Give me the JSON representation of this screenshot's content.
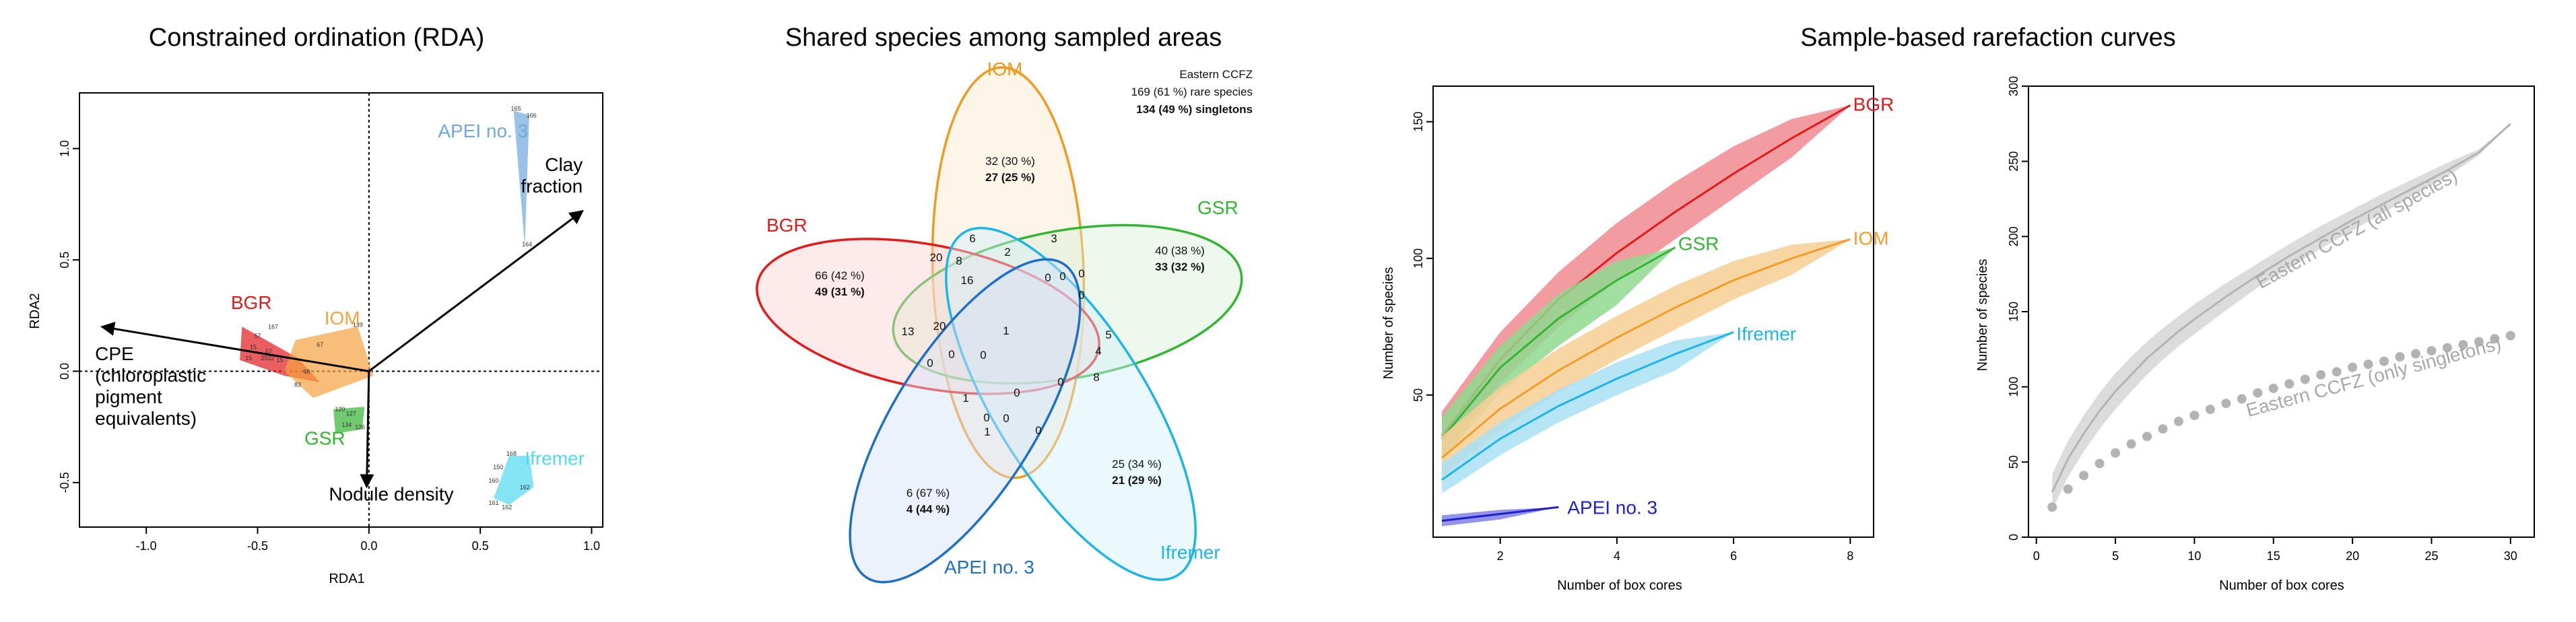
{
  "chart_data": [
    {
      "type": "scatter",
      "title": "Constrained ordination (RDA)",
      "xlabel": "RDA1",
      "ylabel": "RDA2",
      "xlim": [
        -1.3,
        1.05
      ],
      "ylim": [
        -0.7,
        1.25
      ],
      "xticks": [
        "-1.0",
        "-0.5",
        "0.0",
        "0.5",
        "1.0"
      ],
      "yticks": [
        "-0.5",
        "0.0",
        "0.5",
        "1.0"
      ],
      "groups": [
        {
          "name": "BGR",
          "color": "#e31a1c",
          "hull": [
            [
              -0.57,
              0.2
            ],
            [
              -0.32,
              0.06
            ],
            [
              -0.22,
              -0.05
            ],
            [
              -0.38,
              -0.02
            ],
            [
              -0.58,
              0.05
            ]
          ],
          "points": [
            {
              "x": -0.43,
              "y": 0.19,
              "t": "167"
            },
            {
              "x": -0.5,
              "y": 0.15,
              "t": "57"
            },
            {
              "x": -0.52,
              "y": 0.1,
              "t": "15"
            },
            {
              "x": -0.45,
              "y": 0.08,
              "t": "57"
            },
            {
              "x": -0.54,
              "y": 0.05,
              "t": "15"
            },
            {
              "x": -0.4,
              "y": 0.04,
              "t": "15"
            },
            {
              "x": -0.47,
              "y": 0.05,
              "t": "25"
            },
            {
              "x": -0.44,
              "y": 0.05,
              "t": "22"
            }
          ]
        },
        {
          "name": "IOM",
          "color": "#f5a340",
          "hull": [
            [
              -0.33,
              0.14
            ],
            [
              -0.05,
              0.2
            ],
            [
              0.02,
              -0.02
            ],
            [
              -0.25,
              -0.12
            ],
            [
              -0.38,
              0.0
            ]
          ],
          "points": [
            {
              "x": -0.05,
              "y": 0.2,
              "t": "139"
            },
            {
              "x": -0.22,
              "y": 0.11,
              "t": "67"
            },
            {
              "x": -0.28,
              "y": -0.01,
              "t": "68"
            },
            {
              "x": -0.32,
              "y": -0.07,
              "t": "83"
            }
          ]
        },
        {
          "name": "GSR",
          "color": "#33b533",
          "hull": [
            [
              -0.16,
              -0.17
            ],
            [
              -0.02,
              -0.16
            ],
            [
              -0.03,
              -0.26
            ],
            [
              -0.15,
              -0.28
            ]
          ],
          "points": [
            {
              "x": -0.13,
              "y": -0.18,
              "t": "120"
            },
            {
              "x": -0.08,
              "y": -0.2,
              "t": "127"
            },
            {
              "x": -0.1,
              "y": -0.25,
              "t": "134"
            },
            {
              "x": -0.04,
              "y": -0.26,
              "t": "126"
            }
          ]
        },
        {
          "name": "APEI no. 3",
          "color": "#6fa8dc",
          "hull": [
            [
              0.65,
              1.17
            ],
            [
              0.72,
              1.15
            ],
            [
              0.7,
              0.56
            ]
          ],
          "points": [
            {
              "x": 0.66,
              "y": 1.17,
              "t": "165"
            },
            {
              "x": 0.73,
              "y": 1.14,
              "t": "166"
            },
            {
              "x": 0.71,
              "y": 0.56,
              "t": "164"
            }
          ]
        },
        {
          "name": "Ifremer",
          "color": "#4fd8ef",
          "hull": [
            [
              0.63,
              -0.38
            ],
            [
              0.72,
              -0.38
            ],
            [
              0.74,
              -0.52
            ],
            [
              0.63,
              -0.6
            ],
            [
              0.56,
              -0.57
            ]
          ],
          "points": [
            {
              "x": 0.64,
              "y": -0.38,
              "t": "168"
            },
            {
              "x": 0.58,
              "y": -0.44,
              "t": "150"
            },
            {
              "x": 0.56,
              "y": -0.5,
              "t": "160"
            },
            {
              "x": 0.7,
              "y": -0.53,
              "t": "162"
            },
            {
              "x": 0.56,
              "y": -0.6,
              "t": "161"
            },
            {
              "x": 0.62,
              "y": -0.62,
              "t": "162"
            }
          ]
        }
      ],
      "vectors": [
        {
          "name": "Clay fraction",
          "lines": [
            "Clay",
            "fraction"
          ],
          "x": 0.96,
          "y": 0.72
        },
        {
          "name": "CPE (chloroplastic pigment equivalents)",
          "lines": [
            "CPE",
            "(chloroplastic",
            " pigment",
            "equivalents)"
          ],
          "x": -1.2,
          "y": 0.2
        },
        {
          "name": "Nodule density",
          "lines": [
            "Nodule density"
          ],
          "x": -0.01,
          "y": -0.52
        }
      ]
    },
    {
      "type": "venn",
      "title": "Shared species among sampled areas",
      "sets": [
        {
          "name": "IOM",
          "color": "#ef9a20"
        },
        {
          "name": "GSR",
          "color": "#33b533"
        },
        {
          "name": "BGR",
          "color": "#e31a1c"
        },
        {
          "name": "Ifremer",
          "color": "#1eb4e6"
        },
        {
          "name": "APEI no. 3",
          "color": "#1f6fc5"
        }
      ],
      "note": {
        "line1": "Eastern CCFZ",
        "line2": "169 (61 %) rare species",
        "line3": "134 (49 %) singletons"
      },
      "unique_counts": [
        {
          "set": "IOM",
          "line1": "32 (30 %)",
          "line2": "27 (25 %)"
        },
        {
          "set": "GSR",
          "line1": "40 (38 %)",
          "line2": "33 (32 %)"
        },
        {
          "set": "BGR",
          "line1": "66 (42 %)",
          "line2": "49 (31 %)"
        },
        {
          "set": "Ifremer",
          "line1": "25 (34 %)",
          "line2": "21 (29 %)"
        },
        {
          "set": "APEI no. 3",
          "line1": "6 (67 %)",
          "line2": "4 (44 %)"
        }
      ],
      "intersections": [
        "6",
        "2",
        "3",
        "20",
        "8",
        "16",
        "0",
        "0",
        "0",
        "0",
        "0",
        "13",
        "1",
        "5",
        "4",
        "20",
        "0",
        "0",
        "8",
        "1",
        "0",
        "0",
        "0",
        "1",
        "0",
        "0"
      ]
    },
    {
      "type": "line",
      "title": "Sample-based rarefaction curves",
      "xlabel": "Number of box cores",
      "ylabel": "Number of species",
      "xlim": [
        0.85,
        8.4
      ],
      "ylim": [
        -2,
        163
      ],
      "xticks": [
        2,
        4,
        6,
        8
      ],
      "yticks": [
        50,
        100,
        150
      ],
      "series": [
        {
          "name": "BGR",
          "color": "#e31a1c",
          "band": "#f08a8f",
          "x": [
            1,
            2,
            3,
            4,
            5,
            6,
            7,
            8
          ],
          "y": [
            35,
            63,
            85,
            102,
            117,
            131,
            144,
            156
          ],
          "lo": [
            27,
            54,
            75,
            92,
            107,
            122,
            137,
            156
          ],
          "hi": [
            44,
            73,
            95,
            113,
            128,
            141,
            151,
            156
          ]
        },
        {
          "name": "GSR",
          "color": "#33b533",
          "band": "#8fd98f",
          "x": [
            1,
            2,
            3,
            4,
            5
          ],
          "y": [
            34,
            60,
            78,
            92,
            104
          ],
          "lo": [
            26,
            51,
            68,
            83,
            104
          ],
          "hi": [
            42,
            68,
            87,
            99,
            104
          ]
        },
        {
          "name": "IOM",
          "color": "#f39c29",
          "band": "#f7cf94",
          "x": [
            1,
            2,
            3,
            4,
            5,
            6,
            7,
            8
          ],
          "y": [
            27,
            45,
            59,
            71,
            82,
            92,
            100,
            107
          ],
          "lo": [
            20,
            37,
            51,
            63,
            74,
            85,
            94,
            107
          ],
          "hi": [
            35,
            53,
            67,
            79,
            90,
            99,
            105,
            107
          ]
        },
        {
          "name": "Ifremer",
          "color": "#1eb4e6",
          "band": "#a9e1f4",
          "x": [
            1,
            2,
            3,
            4,
            5,
            6
          ],
          "y": [
            19,
            34,
            46,
            56,
            65,
            73
          ],
          "lo": [
            14,
            28,
            40,
            50,
            59,
            73
          ],
          "hi": [
            25,
            40,
            52,
            62,
            70,
            73
          ]
        },
        {
          "name": "APEI no. 3",
          "color": "#1f1fcf",
          "band": "#8080e6",
          "x": [
            1,
            2,
            3
          ],
          "y": [
            4,
            6.5,
            9
          ],
          "lo": [
            2,
            4.5,
            9
          ],
          "hi": [
            6,
            8,
            9
          ]
        }
      ]
    },
    {
      "type": "line",
      "title": "",
      "xlabel": "Number of box cores",
      "ylabel": "Number of species",
      "xlim": [
        -0.5,
        31.5
      ],
      "ylim": [
        0,
        300
      ],
      "xticks": [
        0,
        5,
        10,
        15,
        20,
        25,
        30
      ],
      "yticks": [
        0,
        50,
        100,
        150,
        200,
        250,
        300
      ],
      "series": [
        {
          "name": "Eastern CCFZ (all species)",
          "color": "#b3b3b3",
          "band": "#d6d6d6",
          "style": "line",
          "x": [
            1,
            2,
            3,
            4,
            5,
            6,
            7,
            8,
            9,
            10,
            12,
            14,
            16,
            18,
            20,
            22,
            24,
            26,
            28,
            30
          ],
          "y": [
            30,
            52,
            69,
            84,
            97,
            108,
            119,
            128,
            137,
            145,
            160,
            174,
            187,
            199,
            211,
            222,
            233,
            244,
            256,
            275
          ],
          "lo": [
            18,
            40,
            57,
            72,
            85,
            97,
            108,
            118,
            127,
            135,
            151,
            166,
            179,
            192,
            204,
            216,
            228,
            240,
            254,
            275
          ],
          "hi": [
            42,
            64,
            81,
            96,
            109,
            120,
            130,
            139,
            147,
            155,
            169,
            182,
            195,
            207,
            218,
            229,
            239,
            249,
            258,
            275
          ]
        },
        {
          "name": "Eastern CCFZ (only singletons)",
          "color": "#b3b3b3",
          "style": "dots",
          "x": [
            1,
            2,
            3,
            4,
            5,
            6,
            7,
            8,
            9,
            10,
            11,
            12,
            13,
            14,
            15,
            16,
            17,
            18,
            19,
            20,
            21,
            22,
            23,
            24,
            25,
            26,
            27,
            28,
            29,
            30
          ],
          "y": [
            20,
            32,
            41,
            49,
            56,
            62,
            67,
            72,
            77,
            81,
            85,
            89,
            92,
            96,
            99,
            102,
            105,
            108,
            110,
            113,
            115,
            117,
            120,
            122,
            124,
            126,
            128,
            130,
            132,
            134
          ]
        }
      ]
    }
  ]
}
